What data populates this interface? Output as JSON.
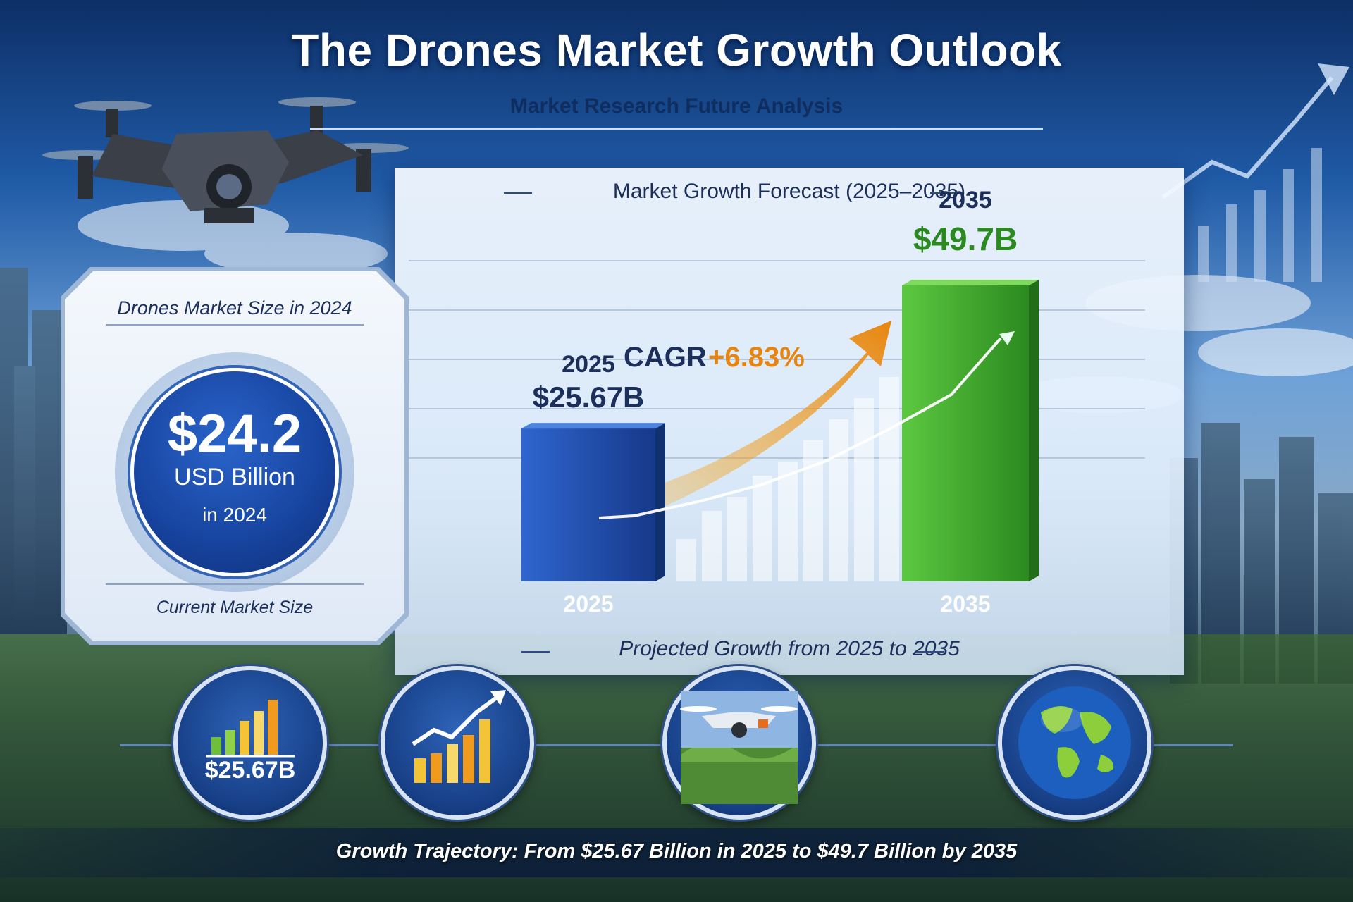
{
  "title": "The Drones Market Growth Outlook",
  "subtitle": "Market Research Future Analysis",
  "left_card": {
    "heading": "Drones Market Size in 2024",
    "value": "$24.2",
    "unit": "USD Billion",
    "year": "in 2024",
    "footer": "Current Market Size"
  },
  "chart_panel": {
    "heading": "Market Growth Forecast (2025–2035)",
    "footer": "Projected Growth from 2025 to 2035",
    "cagr_label": "CAGR",
    "cagr_value": "+6.83%"
  },
  "chart_data": {
    "type": "bar",
    "categories": [
      "2025",
      "2035"
    ],
    "values": [
      25.67,
      49.7
    ],
    "value_labels": [
      "$25.67B",
      "$49.7B"
    ],
    "top_labels": [
      "2025",
      "2035"
    ],
    "colors": [
      "#1f4fb0",
      "#3da62a"
    ]
  },
  "bottom_row": {
    "value_label": "$25.67B",
    "icons": [
      "bar-chart-icon",
      "growth-chart-icon",
      "drone-landscape-icon",
      "globe-icon"
    ]
  },
  "caption": "Growth Trajectory: From $25.67 Billion in 2025 to $49.7 Billion by 2035",
  "colors": {
    "accent_blue": "#1846a3",
    "accent_green": "#3da62a",
    "accent_orange": "#e8850f"
  }
}
